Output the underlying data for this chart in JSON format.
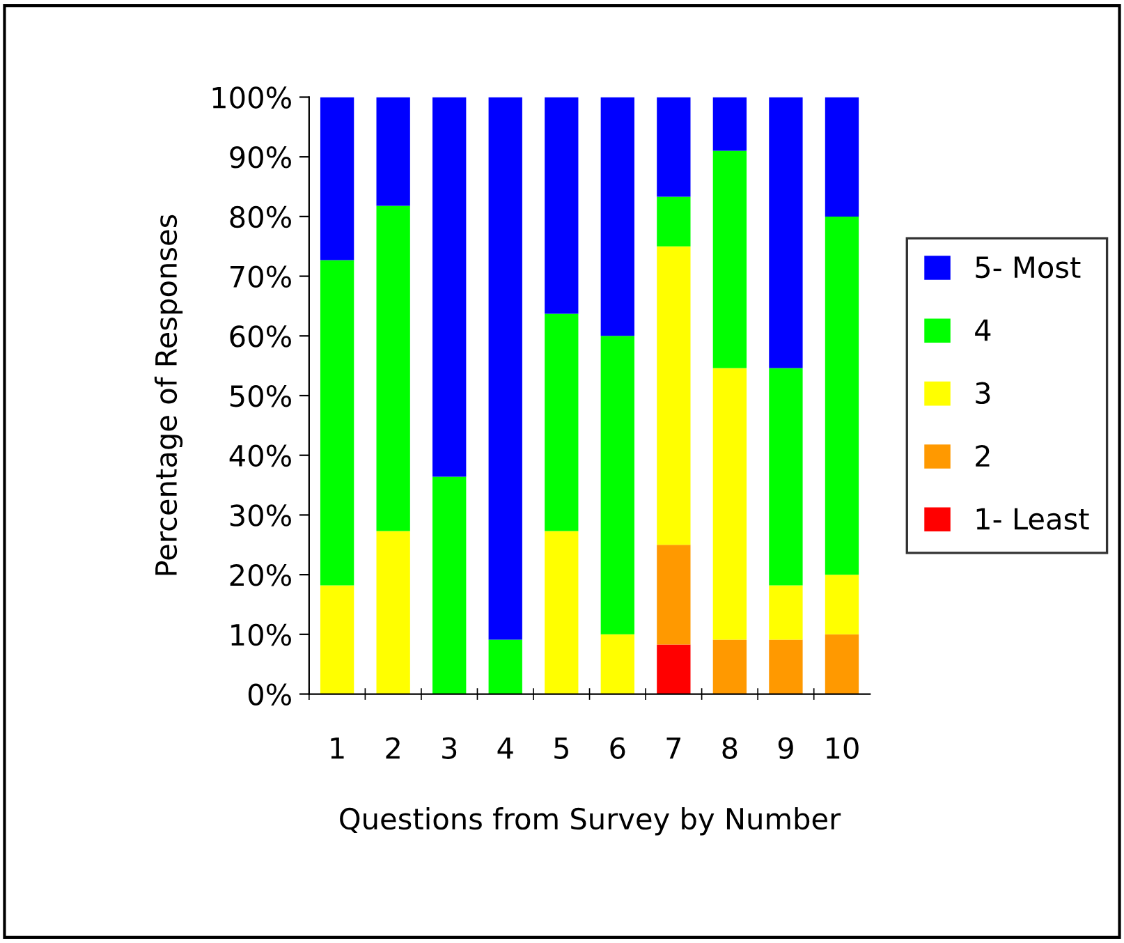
{
  "chart_data": {
    "type": "bar",
    "stacked": true,
    "xlabel": "Questions from Survey by Number",
    "ylabel": "Percentage of Responses",
    "categories": [
      "1",
      "2",
      "3",
      "4",
      "5",
      "6",
      "7",
      "8",
      "9",
      "10"
    ],
    "series": [
      {
        "name": "1- Least",
        "color": "#ff0000",
        "values": [
          0,
          0,
          0,
          0,
          0,
          0,
          8.3,
          0,
          0,
          0
        ]
      },
      {
        "name": "2",
        "color": "#ff9900",
        "values": [
          0,
          0,
          0,
          0,
          0,
          0,
          16.7,
          9.1,
          9.1,
          10
        ]
      },
      {
        "name": "3",
        "color": "#ffff00",
        "values": [
          18.2,
          27.3,
          0,
          0,
          27.3,
          10,
          50,
          45.5,
          9.1,
          10
        ]
      },
      {
        "name": "4",
        "color": "#00ff00",
        "values": [
          54.5,
          54.5,
          36.4,
          9.1,
          36.4,
          50,
          8.3,
          36.4,
          36.4,
          60
        ]
      },
      {
        "name": "5- Most",
        "color": "#0000ff",
        "values": [
          27.3,
          18.2,
          63.6,
          90.9,
          36.3,
          40,
          16.7,
          9,
          45.4,
          20
        ]
      }
    ],
    "ylim": [
      0,
      100
    ],
    "yticks": [
      {
        "value": 0,
        "label": "0%"
      },
      {
        "value": 10,
        "label": "10%"
      },
      {
        "value": 20,
        "label": "20%"
      },
      {
        "value": 30,
        "label": "30%"
      },
      {
        "value": 40,
        "label": "40%"
      },
      {
        "value": 50,
        "label": "50%"
      },
      {
        "value": 60,
        "label": "60%"
      },
      {
        "value": 70,
        "label": "70%"
      },
      {
        "value": 80,
        "label": "80%"
      },
      {
        "value": 90,
        "label": "90%"
      },
      {
        "value": 100,
        "label": "100%"
      }
    ],
    "grid": false,
    "legend": "right"
  }
}
